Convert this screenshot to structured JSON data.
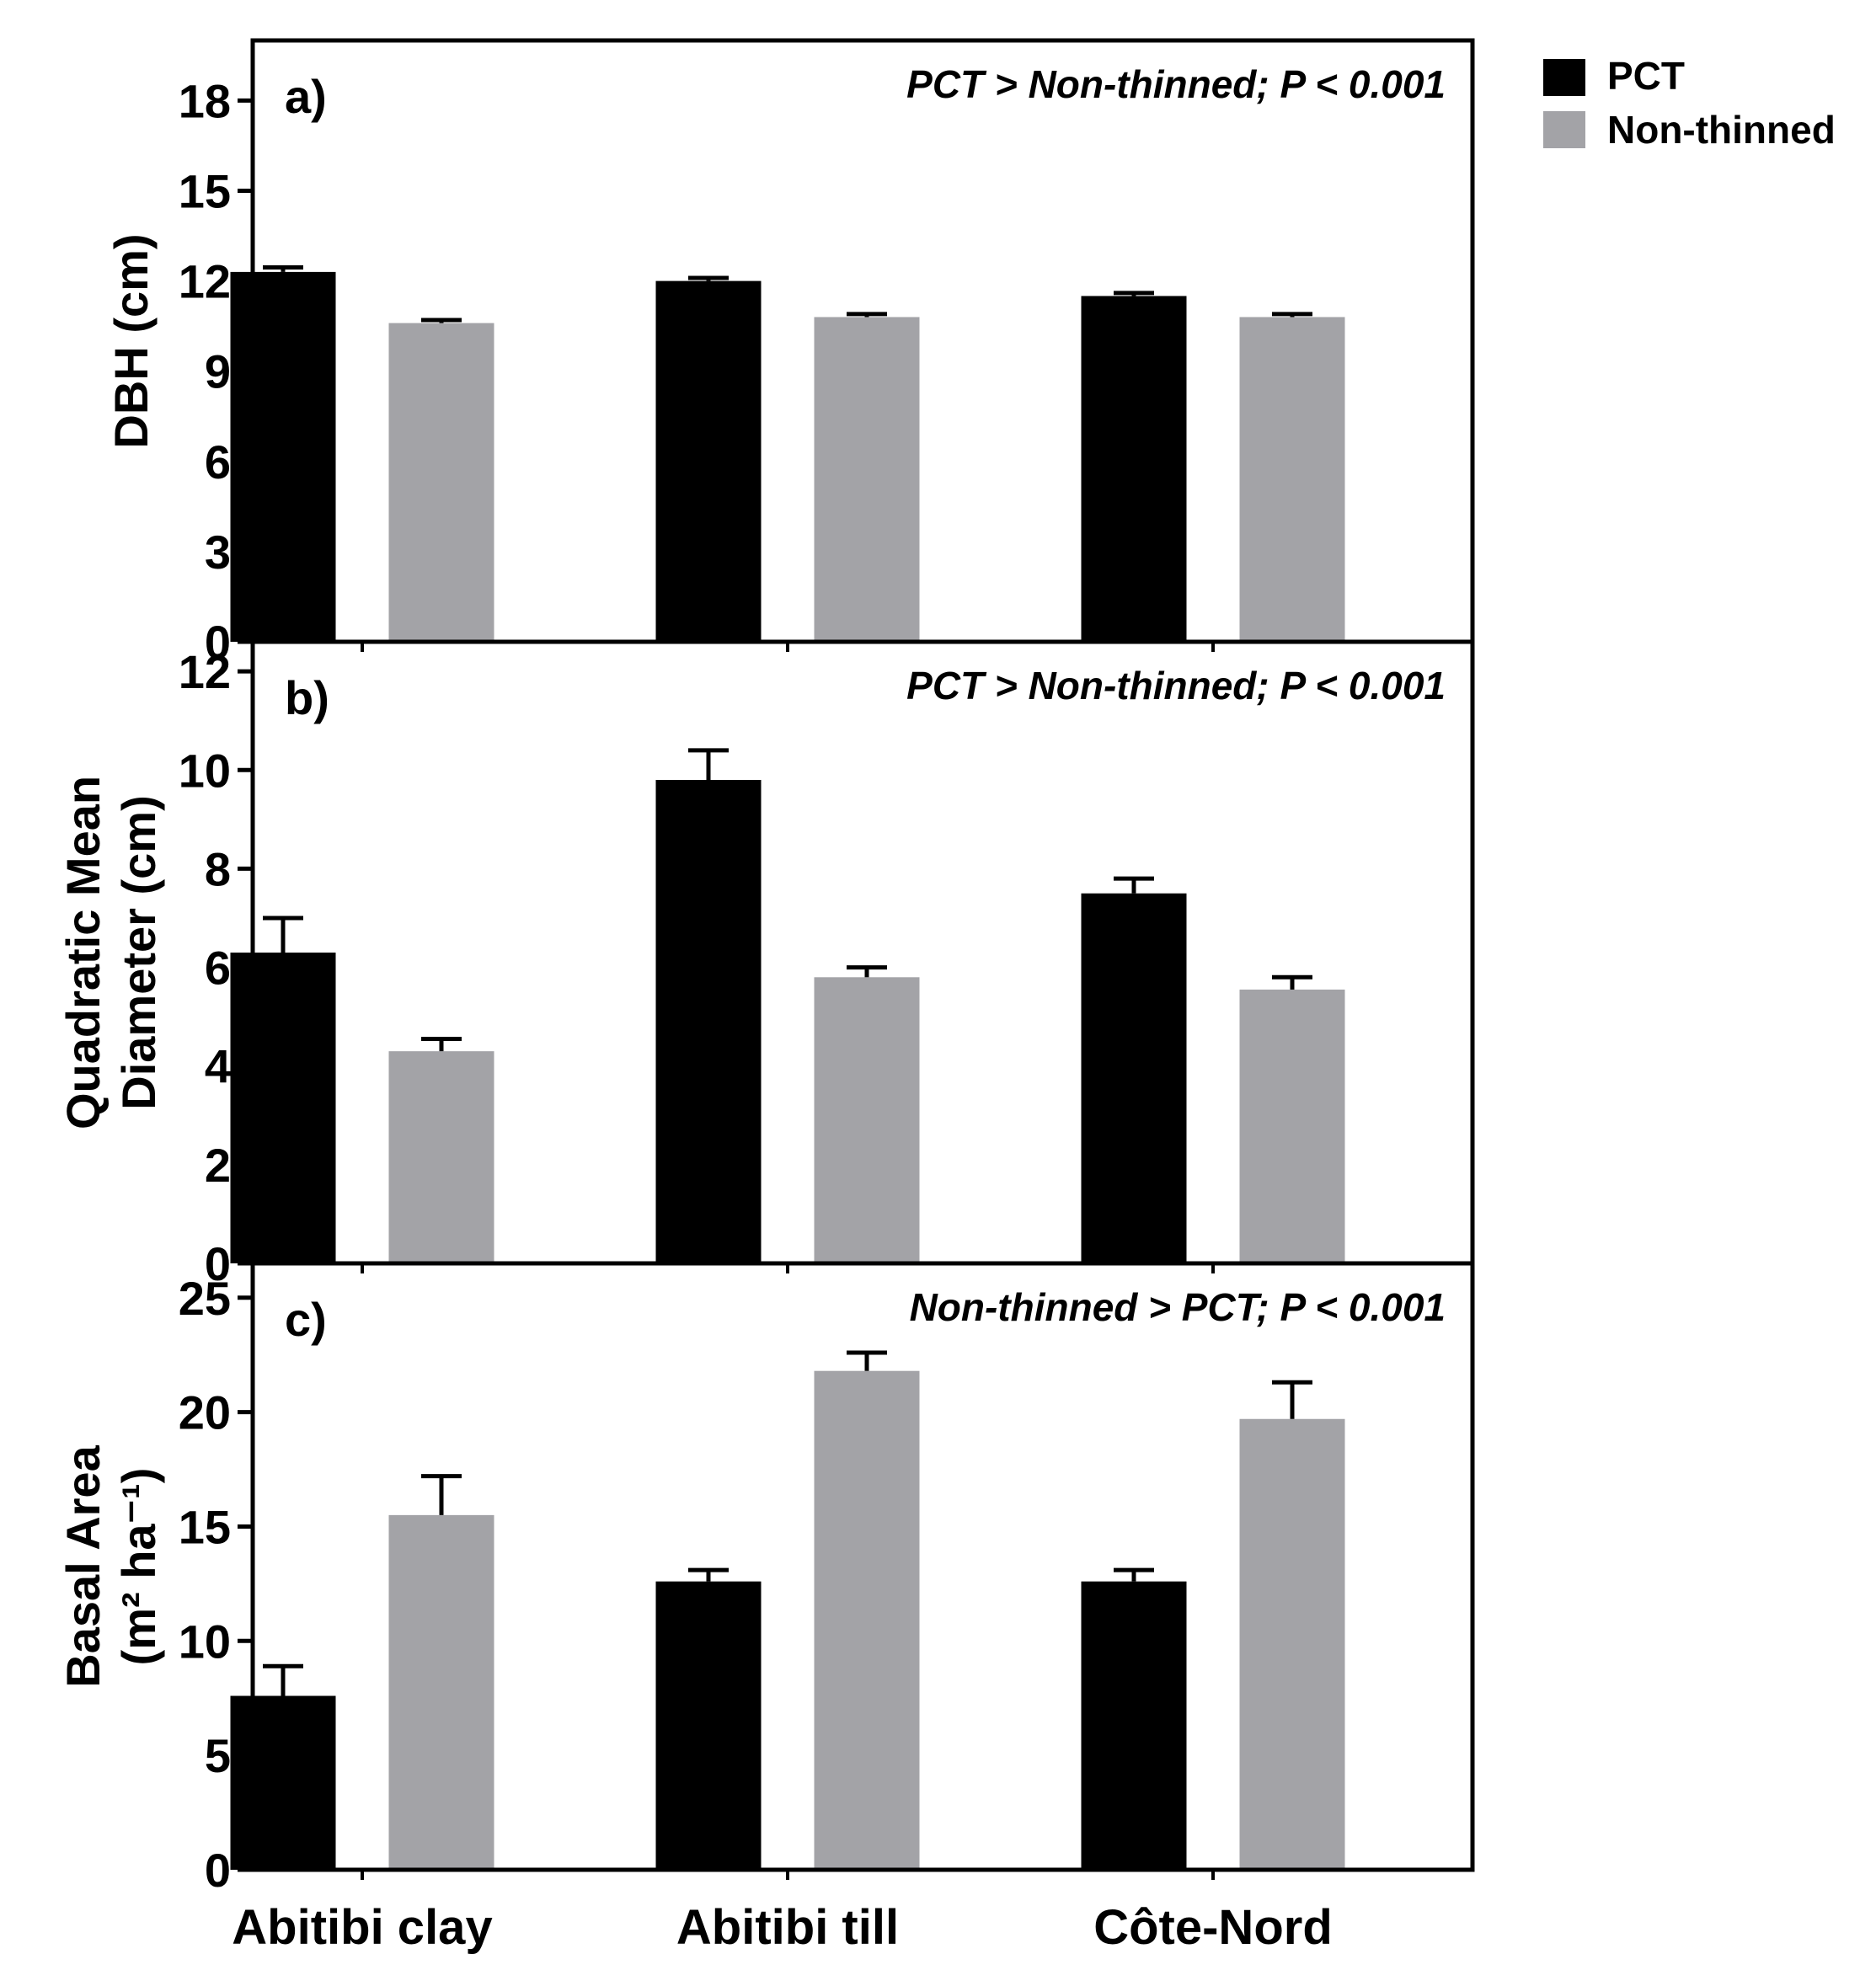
{
  "colors": {
    "pct": "#000000",
    "non_thinned": "#a3a3a7",
    "axis": "#000000"
  },
  "legend": {
    "items": [
      {
        "label": "PCT",
        "color": "#000000"
      },
      {
        "label": "Non-thinned",
        "color": "#a3a3a7"
      }
    ]
  },
  "chart_data": [
    {
      "type": "bar",
      "panel": "a)",
      "annotation": "PCT > Non-thinned; P < 0.001",
      "ylabel_lines": [
        "DBH (cm)"
      ],
      "ylim": [
        0,
        20
      ],
      "yticks": [
        0,
        3,
        6,
        9,
        12,
        15,
        18
      ],
      "categories": [
        "Abitibi clay",
        "Abitibi till",
        "Côte-Nord"
      ],
      "series": [
        {
          "name": "PCT",
          "values": [
            12.3,
            12.0,
            11.5
          ],
          "errors": [
            0.15,
            0.1,
            0.1
          ]
        },
        {
          "name": "Non-thinned",
          "values": [
            10.6,
            10.8,
            10.8
          ],
          "errors": [
            0.1,
            0.1,
            0.1
          ]
        }
      ]
    },
    {
      "type": "bar",
      "panel": "b)",
      "annotation": "PCT > Non-thinned; P < 0.001",
      "ylabel_lines": [
        "Quadratic Mean",
        "Diameter (cm)"
      ],
      "ylim": [
        0,
        12.6
      ],
      "yticks": [
        0,
        2,
        4,
        6,
        8,
        10,
        12
      ],
      "categories": [
        "Abitibi clay",
        "Abitibi till",
        "Côte-Nord"
      ],
      "series": [
        {
          "name": "PCT",
          "values": [
            6.3,
            9.8,
            7.5
          ],
          "errors": [
            0.7,
            0.6,
            0.3
          ]
        },
        {
          "name": "Non-thinned",
          "values": [
            4.3,
            5.8,
            5.55
          ],
          "errors": [
            0.25,
            0.2,
            0.25
          ]
        }
      ]
    },
    {
      "type": "bar",
      "panel": "c)",
      "annotation": "Non-thinned > PCT; P < 0.001",
      "ylabel_lines": [
        "Basal Area",
        "(m² ha⁻¹)"
      ],
      "ylim": [
        0,
        26.5
      ],
      "yticks": [
        0,
        5,
        10,
        15,
        20,
        25
      ],
      "categories": [
        "Abitibi clay",
        "Abitibi till",
        "Côte-Nord"
      ],
      "series": [
        {
          "name": "PCT",
          "values": [
            7.6,
            12.6,
            12.6
          ],
          "errors": [
            1.3,
            0.5,
            0.5
          ]
        },
        {
          "name": "Non-thinned",
          "values": [
            15.5,
            21.8,
            19.7
          ],
          "errors": [
            1.7,
            0.8,
            1.6
          ]
        }
      ]
    }
  ]
}
